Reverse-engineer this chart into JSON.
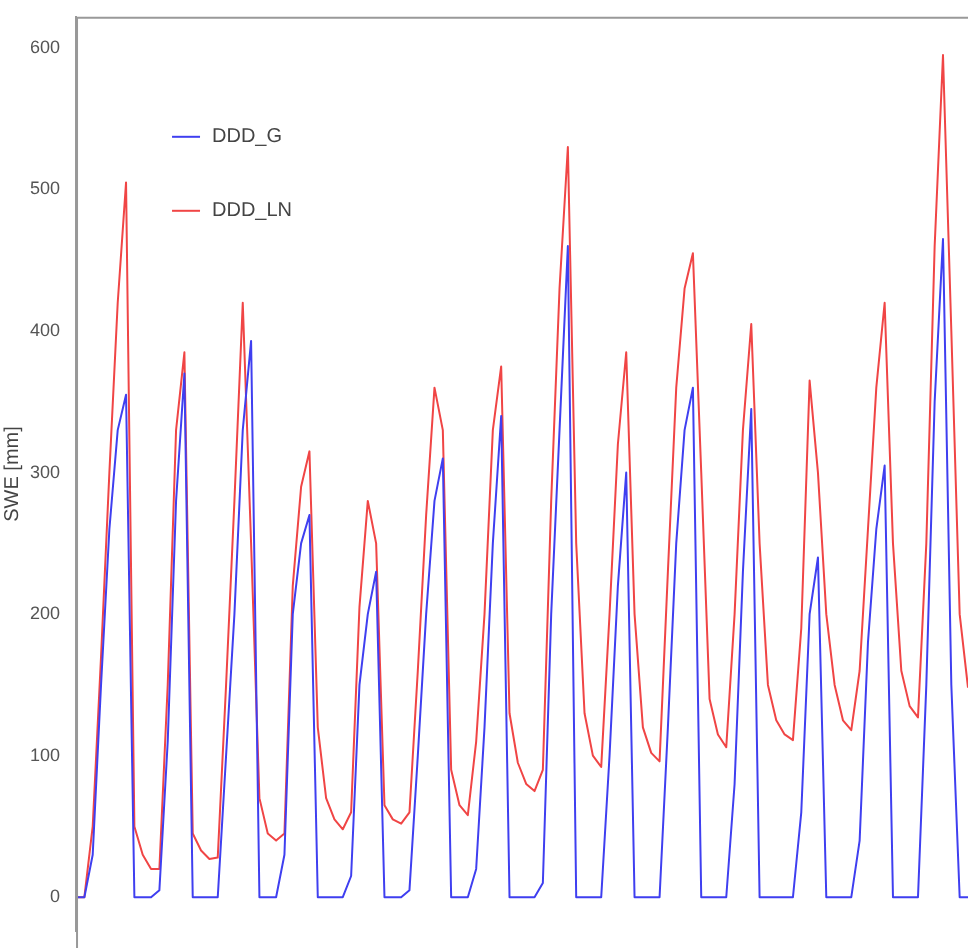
{
  "chart_data": {
    "type": "line",
    "ylabel": "SWE [mm]",
    "categories": [
      null,
      null,
      null,
      null,
      null,
      null,
      null,
      null,
      null,
      null,
      null,
      null,
      null,
      null,
      null,
      null,
      null,
      null,
      null,
      null,
      null,
      null,
      null,
      null,
      null,
      null,
      null,
      null,
      null,
      null,
      null,
      null,
      null,
      null,
      null,
      null,
      null,
      null,
      null,
      null,
      null,
      null,
      null,
      null,
      null,
      null,
      null,
      null,
      null,
      null,
      null,
      null,
      null,
      null,
      null,
      null,
      null,
      null,
      null,
      null,
      null,
      null,
      null,
      null,
      null,
      null,
      null,
      null,
      null,
      null,
      null,
      null,
      null,
      null,
      null,
      null,
      null,
      null,
      null,
      null,
      null,
      null,
      null,
      null,
      null,
      null,
      null,
      null,
      null,
      null,
      null,
      null,
      null,
      null,
      null,
      null,
      null,
      null,
      null,
      null,
      null,
      null,
      null,
      null,
      null,
      null,
      null,
      null
    ],
    "series": [
      {
        "name": "DDD_G",
        "color": "#3f3ff0",
        "values": [
          0,
          0,
          30,
          150,
          260,
          330,
          355,
          0,
          0,
          0,
          5,
          110,
          280,
          370,
          0,
          0,
          0,
          0,
          100,
          200,
          330,
          393,
          0,
          0,
          0,
          30,
          200,
          250,
          270,
          0,
          0,
          0,
          0,
          15,
          150,
          200,
          230,
          0,
          0,
          0,
          5,
          100,
          200,
          280,
          310,
          0,
          0,
          0,
          20,
          120,
          250,
          340,
          0,
          0,
          0,
          0,
          10,
          200,
          330,
          460,
          0,
          0,
          0,
          0,
          100,
          220,
          300,
          0,
          0,
          0,
          0,
          120,
          250,
          330,
          360,
          0,
          0,
          0,
          0,
          80,
          230,
          345,
          0,
          0,
          0,
          0,
          0,
          60,
          200,
          240,
          0,
          0,
          0,
          0,
          40,
          180,
          260,
          305,
          0,
          0,
          0,
          0,
          150,
          350,
          465,
          150,
          0,
          0
        ]
      },
      {
        "name": "DDD_LN",
        "color": "#f04545",
        "values": [
          0,
          0,
          50,
          170,
          300,
          420,
          505,
          50,
          30,
          20,
          20,
          150,
          330,
          385,
          45,
          33,
          27,
          28,
          150,
          280,
          420,
          250,
          70,
          45,
          40,
          45,
          220,
          290,
          315,
          120,
          70,
          55,
          48,
          60,
          205,
          280,
          250,
          65,
          55,
          52,
          60,
          160,
          270,
          360,
          330,
          90,
          65,
          58,
          110,
          200,
          330,
          375,
          130,
          95,
          80,
          75,
          90,
          280,
          430,
          530,
          250,
          130,
          100,
          92,
          200,
          320,
          385,
          200,
          120,
          102,
          96,
          230,
          360,
          430,
          455,
          300,
          140,
          115,
          106,
          200,
          330,
          405,
          250,
          150,
          125,
          115,
          111,
          190,
          365,
          300,
          200,
          150,
          125,
          118,
          160,
          260,
          360,
          420,
          250,
          160,
          135,
          127,
          250,
          460,
          595,
          400,
          200,
          148
        ]
      }
    ],
    "ylim": [
      -24,
      622
    ],
    "yticks": [
      0,
      100,
      200,
      300,
      400,
      500,
      600
    ],
    "tick_labels": "y",
    "grid": false,
    "legend": "top left",
    "marker": "none",
    "line_style": "solid"
  }
}
